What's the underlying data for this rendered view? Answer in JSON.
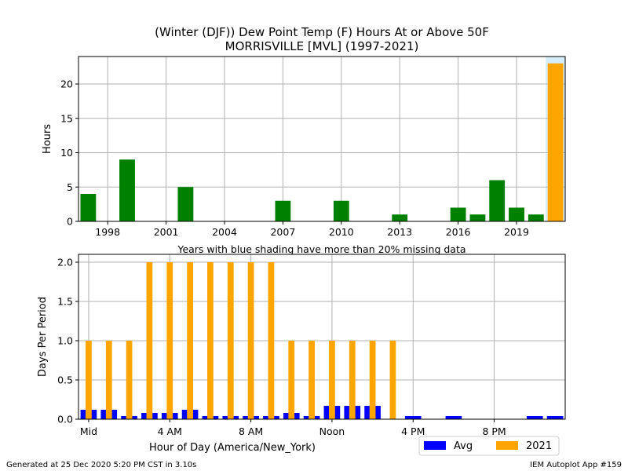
{
  "title": {
    "line1": "(Winter (DJF)) Dew Point Temp (F) Hours At or Above 50F",
    "line2": "MORRISVILLE [MVL] (1997-2021)"
  },
  "footer": {
    "left": "Generated at 25 Dec 2020 5:20 PM CST in 3.10s",
    "right": "IEM Autoplot App #159"
  },
  "colors": {
    "years_bar": "#008000",
    "highlight_bar": "#ffa500",
    "avg_bar": "#0000ff",
    "missing_shade": "#d6eef8",
    "grid": "#b0b0b0"
  },
  "chart_data": [
    {
      "type": "bar",
      "ylabel": "Hours",
      "xlabel": "",
      "ylim": [
        0,
        24
      ],
      "xlim": [
        1996.5,
        2021.5
      ],
      "xticks": [
        1998,
        2001,
        2004,
        2007,
        2010,
        2013,
        2016,
        2019
      ],
      "yticks": [
        0,
        5,
        10,
        15,
        20
      ],
      "grid": true,
      "note": "Years with blue shading have more than 20% missing data",
      "missing_years": [
        2021
      ],
      "highlight_year": 2021,
      "years": [
        1997,
        1998,
        1999,
        2000,
        2001,
        2002,
        2003,
        2004,
        2005,
        2006,
        2007,
        2008,
        2009,
        2010,
        2011,
        2012,
        2013,
        2014,
        2015,
        2016,
        2017,
        2018,
        2019,
        2020,
        2021
      ],
      "values": [
        4,
        0,
        9,
        0,
        0,
        5,
        0,
        0,
        0,
        0,
        3,
        0,
        0,
        3,
        0,
        0,
        1,
        0,
        0,
        2,
        1,
        6,
        2,
        1,
        23
      ]
    },
    {
      "type": "bar",
      "xlabel": "Hour of Day (America/New_York)",
      "ylabel": "Days Per Period",
      "ylim": [
        0,
        2.1
      ],
      "xlim": [
        -0.5,
        23.5
      ],
      "xticks": [
        0,
        4,
        8,
        12,
        16,
        20
      ],
      "xtick_labels": [
        "Mid",
        "4 AM",
        "8 AM",
        "Noon",
        "4 PM",
        "8 PM"
      ],
      "yticks": [
        0.0,
        0.5,
        1.0,
        1.5,
        2.0
      ],
      "ytick_labels": [
        "0.0",
        "0.5",
        "1.0",
        "1.5",
        "2.0"
      ],
      "grid": true,
      "legend": "bottom-right",
      "hours": [
        0,
        1,
        2,
        3,
        4,
        5,
        6,
        7,
        8,
        9,
        10,
        11,
        12,
        13,
        14,
        15,
        16,
        17,
        18,
        19,
        20,
        21,
        22,
        23
      ],
      "series": [
        {
          "name": "Avg",
          "values": [
            0.12,
            0.12,
            0.04,
            0.08,
            0.08,
            0.12,
            0.04,
            0.04,
            0.04,
            0.04,
            0.08,
            0.04,
            0.17,
            0.17,
            0.17,
            0.0,
            0.04,
            0.0,
            0.04,
            0.0,
            0.0,
            0.0,
            0.04,
            0.04
          ]
        },
        {
          "name": "2021",
          "values": [
            1,
            1,
            1,
            2,
            2,
            2,
            2,
            2,
            2,
            2,
            1,
            1,
            1,
            1,
            1,
            1,
            0,
            0,
            0,
            0,
            0,
            0,
            0,
            0
          ]
        }
      ]
    }
  ]
}
